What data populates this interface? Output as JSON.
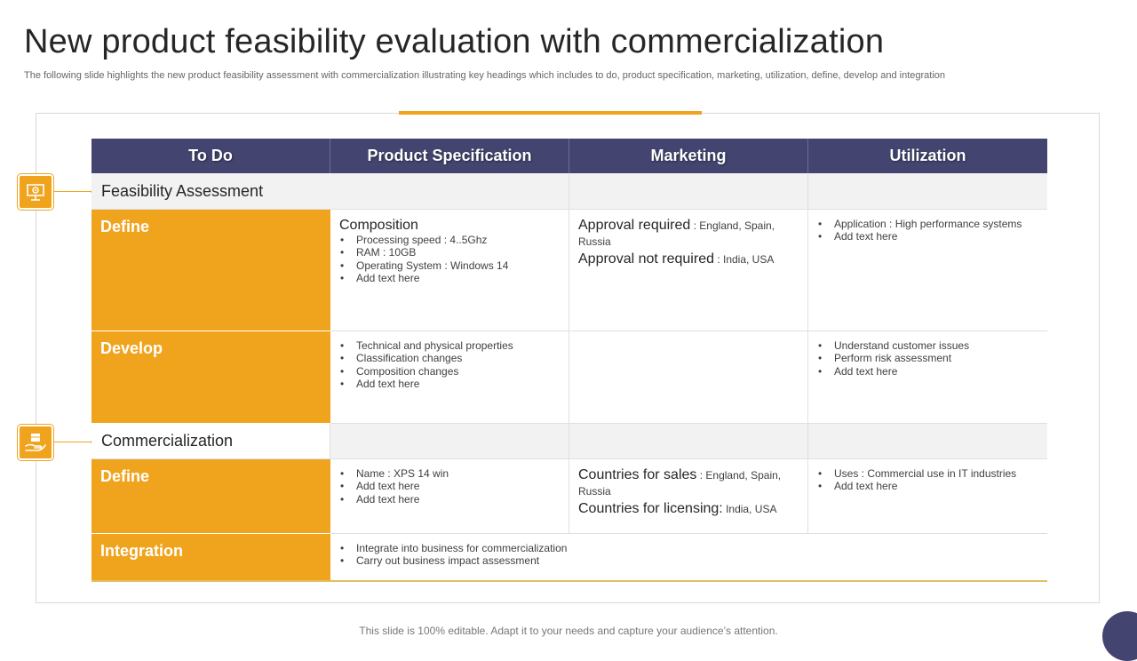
{
  "slide": {
    "title": "New product feasibility evaluation with commercialization",
    "subtitle": "The following slide highlights the new product feasibility assessment with commercialization illustrating key headings which includes to do, product specification, marketing, utilization, define, develop and integration",
    "footer": "This slide is 100% editable. Adapt it to your needs and capture your audience’s attention."
  },
  "colors": {
    "accent": "#f0a41e",
    "header": "#434570",
    "section_bg": "#f2f2f2"
  },
  "icons": {
    "feasibility": "presentation-gear-icon",
    "commercialization": "hand-box-icon"
  },
  "table": {
    "headers": [
      "To Do",
      "Product Specification",
      "Marketing",
      "Utilization"
    ],
    "feasibility": {
      "label": "Feasibility Assessment",
      "define": {
        "label": "Define",
        "spec_heading": "Composition",
        "spec_items": [
          "Processing speed : 4..5Ghz",
          "RAM : 10GB",
          "Operating System : Windows 14",
          "Add text here"
        ],
        "mkt_label_1": "Approval required",
        "mkt_value_1": " : England, Spain, Russia",
        "mkt_label_2": "Approval not required",
        "mkt_value_2": " : India, USA",
        "util_items": [
          "Application : High performance systems",
          "Add text here"
        ]
      },
      "develop": {
        "label": "Develop",
        "spec_items": [
          "Technical and physical properties",
          "Classification changes",
          "Composition changes",
          "Add text here"
        ],
        "util_items": [
          "Understand customer issues",
          "Perform risk assessment",
          "Add text here"
        ]
      }
    },
    "commercialization": {
      "label": "Commercialization",
      "define": {
        "label": "Define",
        "spec_items": [
          "Name : XPS 14 win",
          "Add text here",
          "Add text here"
        ],
        "mkt_label_1": "Countries for sales",
        "mkt_value_1": " : England, Spain, Russia",
        "mkt_label_2": "Countries for licensing:",
        "mkt_value_2": " India, USA",
        "util_items": [
          "Uses : Commercial use in IT industries",
          "Add text here"
        ]
      },
      "integration": {
        "label": "Integration",
        "items": [
          "Integrate into business for commercialization",
          "Carry out business impact assessment"
        ]
      }
    }
  }
}
